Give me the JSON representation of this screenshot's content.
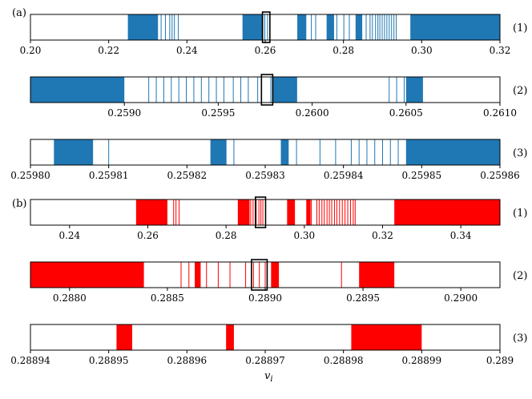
{
  "chart_data": {
    "type": "barcode",
    "xlabel": "v_i",
    "xlabel_main": "v",
    "xlabel_sub": "i",
    "panels": [
      {
        "label": "(a)",
        "color": "#1f77b4",
        "rows": [
          {
            "row_label": "(1)",
            "xlim": [
              0.2,
              0.32
            ],
            "ticks": [
              0.2,
              0.22,
              0.24,
              0.26,
              0.28,
              0.3,
              0.32
            ],
            "tick_labels": [
              "0.20",
              "0.22",
              "0.24",
              "0.26",
              "0.28",
              "0.30",
              "0.32"
            ],
            "zoom_box": [
              0.2593,
              0.2612
            ],
            "blocks": [
              [
                0.2249,
                0.2326
              ],
              [
                0.2542,
                0.2595
              ],
              [
                0.2682,
                0.2705
              ],
              [
                0.2757,
                0.2776
              ],
              [
                0.2831,
                0.2848
              ],
              [
                0.2971,
                0.32
              ]
            ],
            "lines": [
              0.2334,
              0.2345,
              0.2356,
              0.2362,
              0.2368,
              0.2378,
              0.2599,
              0.2606,
              0.2612,
              0.2718,
              0.2729,
              0.2783,
              0.2801,
              0.2815,
              0.2858,
              0.2868,
              0.2874,
              0.2882,
              0.2888,
              0.2893,
              0.2899,
              0.2905,
              0.2911,
              0.2917,
              0.2923,
              0.2929,
              0.2935
            ]
          },
          {
            "row_label": "(2)",
            "xlim": [
              0.2585,
              0.261
            ],
            "ticks": [
              0.259,
              0.2595,
              0.26,
              0.2605,
              0.261
            ],
            "tick_labels": [
              "0.2590",
              "0.2595",
              "0.2600",
              "0.2605",
              "0.2610"
            ],
            "zoom_box": [
              0.25973,
              0.25979
            ],
            "blocks": [
              [
                0.2585,
                0.259
              ],
              [
                0.25979,
                0.25992
              ],
              [
                0.2605,
                0.26059
              ]
            ],
            "lines": [
              0.25913,
              0.25917,
              0.25921,
              0.25925,
              0.25929,
              0.25933,
              0.25937,
              0.25941,
              0.25945,
              0.25949,
              0.25953,
              0.25958,
              0.25962,
              0.25966,
              0.25971,
              0.25978,
              0.26041,
              0.26045,
              0.26049
            ]
          },
          {
            "row_label": "(3)",
            "xlim": [
              0.2598,
              0.25986
            ],
            "ticks": [
              0.2598,
              0.25981,
              0.25982,
              0.25983,
              0.25984,
              0.25985,
              0.25986
            ],
            "tick_labels": [
              "0.25980",
              "0.25981",
              "0.25982",
              "0.25983",
              "0.25984",
              "0.25985",
              "0.25986"
            ],
            "blocks": [
              [
                0.259803,
                0.259808
              ],
              [
                0.259823,
                0.259825
              ],
              [
                0.259832,
                0.259833
              ],
              [
                0.259848,
                0.25986
              ]
            ],
            "lines": [
              0.25981,
              0.259825,
              0.259826,
              0.259834,
              0.259837,
              0.259839,
              0.259841,
              0.259842,
              0.259843,
              0.259844,
              0.259845,
              0.259846,
              0.259847
            ]
          }
        ]
      },
      {
        "label": "(b)",
        "color": "#ff0000",
        "rows": [
          {
            "row_label": "(1)",
            "xlim": [
              0.23,
              0.35
            ],
            "ticks": [
              0.24,
              0.26,
              0.28,
              0.3,
              0.32,
              0.34
            ],
            "tick_labels": [
              "0.24",
              "0.26",
              "0.28",
              "0.30",
              "0.32",
              "0.34"
            ],
            "zoom_box": [
              0.2875,
              0.2901
            ],
            "blocks": [
              [
                0.257,
                0.265
              ],
              [
                0.283,
                0.286
              ],
              [
                0.2956,
                0.2976
              ],
              [
                0.3005,
                0.3016
              ],
              [
                0.323,
                0.35
              ]
            ],
            "lines": [
              0.2666,
              0.2672,
              0.268,
              0.2863,
              0.2869,
              0.2877,
              0.2884,
              0.2889,
              0.2894,
              0.3018,
              0.3032,
              0.3038,
              0.3045,
              0.3051,
              0.3058,
              0.3064,
              0.307,
              0.3077,
              0.3083,
              0.309,
              0.3097,
              0.3104,
              0.3111,
              0.3118,
              0.3125,
              0.313
            ]
          },
          {
            "row_label": "(2)",
            "xlim": [
              0.2878,
              0.2902
            ],
            "ticks": [
              0.288,
              0.2885,
              0.289,
              0.2895,
              0.29
            ],
            "tick_labels": [
              "0.2880",
              "0.2885",
              "0.2890",
              "0.2895",
              "0.2900"
            ],
            "zoom_box": [
              0.28893,
              0.28901
            ],
            "blocks": [
              [
                0.2878,
                0.28838
              ],
              [
                0.28864,
                0.28867
              ],
              [
                0.28903,
                0.28907
              ],
              [
                0.28948,
                0.28966
              ]
            ],
            "lines": [
              0.28857,
              0.28861,
              0.28866,
              0.2887,
              0.28876,
              0.28882,
              0.2889,
              0.28894,
              0.28897,
              0.289,
              0.28939
            ]
          },
          {
            "row_label": "(3)",
            "xlim": [
              0.28894,
              0.289
            ],
            "ticks": [
              0.28894,
              0.28895,
              0.28896,
              0.28897,
              0.28898,
              0.28899,
              0.289
            ],
            "tick_labels": [
              "0.28894",
              "0.28895",
              "0.28896",
              "0.28897",
              "0.28898",
              "0.28899",
              "0.289"
            ],
            "blocks": [
              [
                0.288951,
                0.288953
              ],
              [
                0.288965,
                0.288966
              ],
              [
                0.288981,
                0.28899
              ]
            ],
            "lines": []
          }
        ]
      }
    ]
  }
}
